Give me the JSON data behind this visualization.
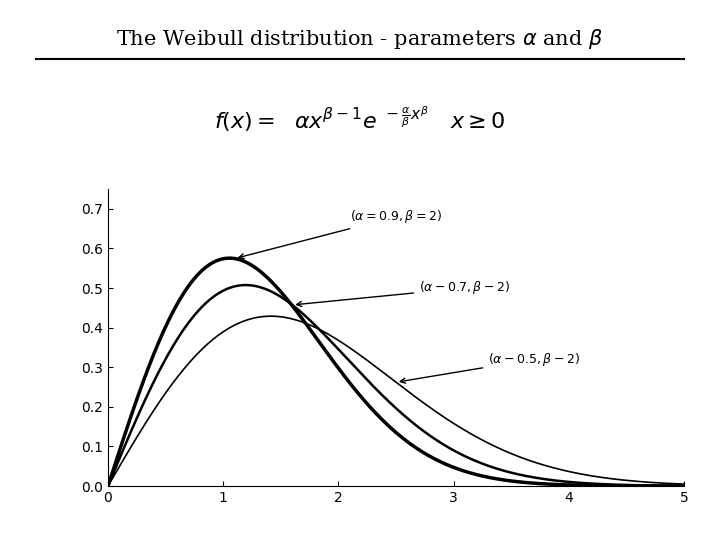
{
  "title": "The Weibull distribution - parameters $\\alpha$ and $\\beta$",
  "formula": "$f(x) = \\alpha x^{\\beta-1} e^{-\\frac{\\alpha}{\\beta} x^{\\beta}}$   $x \\geq 0$",
  "curves": [
    {
      "alpha": 0.9,
      "beta": 2,
      "label": "($\\alpha$=0.9, $\\beta$=2)"
    },
    {
      "alpha": 0.7,
      "beta": 2,
      "label": "($\\alpha$−0.7, $\\beta$−2)"
    },
    {
      "alpha": 0.5,
      "beta": 2,
      "label": "($\\alpha$−0.5, $\\beta$−2)"
    }
  ],
  "xmin": 0,
  "xmax": 5,
  "ymin": 0,
  "ymax": 0.75,
  "yticks": [
    0,
    0.1,
    0.2,
    0.3,
    0.4,
    0.5,
    0.6,
    0.7
  ],
  "xticks": [
    0,
    1,
    2,
    3,
    4,
    5
  ],
  "background_color": "#ffffff",
  "line_color": "black",
  "annotation_fontsize": 10,
  "title_fontsize": 15
}
